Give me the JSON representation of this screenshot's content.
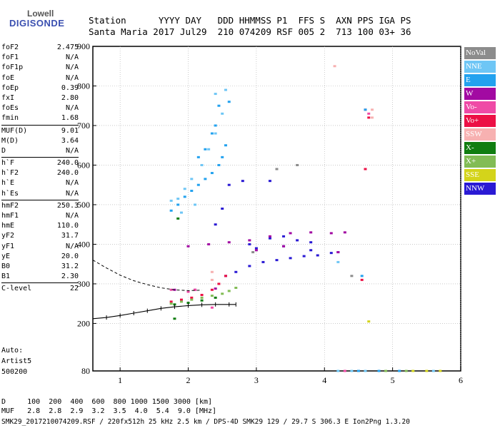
{
  "logo": {
    "line1": "Lowell",
    "line2": "DIGISONDE"
  },
  "header": {
    "row1": "Station      YYYY DAY   DDD HHMMSS P1  FFS S  AXN PPS IGA PS",
    "row2": "Santa Maria 2017 Jul29  210 074209 RSF 005 2  713 100 03+ 36"
  },
  "params": [
    {
      "group": [
        {
          "name": "foF2",
          "value": "2.475"
        },
        {
          "name": "foF1",
          "value": "N/A"
        },
        {
          "name": "foF1p",
          "value": "N/A"
        },
        {
          "name": "foE",
          "value": "N/A"
        },
        {
          "name": "foEp",
          "value": "0.39"
        },
        {
          "name": "fxI",
          "value": "2.80"
        },
        {
          "name": "foEs",
          "value": "N/A"
        },
        {
          "name": "fmin",
          "value": "1.68"
        }
      ]
    },
    {
      "group": [
        {
          "name": "MUF(D)",
          "value": "9.01"
        },
        {
          "name": "M(D)",
          "value": "3.64"
        },
        {
          "name": "D",
          "value": "N/A"
        }
      ]
    },
    {
      "group": [
        {
          "name": "h`F",
          "value": "240.0"
        },
        {
          "name": "h`F2",
          "value": "240.0"
        },
        {
          "name": "h`E",
          "value": "N/A"
        },
        {
          "name": "h`Es",
          "value": "N/A"
        }
      ]
    },
    {
      "group": [
        {
          "name": "hmF2",
          "value": "250.3"
        },
        {
          "name": "hmF1",
          "value": "N/A"
        },
        {
          "name": "hmE",
          "value": "110.0"
        },
        {
          "name": "yF2",
          "value": "31.7"
        },
        {
          "name": "yF1",
          "value": "N/A"
        },
        {
          "name": "yE",
          "value": "20.0"
        },
        {
          "name": "B0",
          "value": "31.2"
        },
        {
          "name": "B1",
          "value": "2.30"
        }
      ]
    },
    {
      "group": [
        {
          "name": "C-level",
          "value": "22"
        }
      ]
    }
  ],
  "auto": {
    "label": "Auto:",
    "scaler": "Artist5",
    "version": "500200"
  },
  "legend": [
    {
      "label": "NoVal",
      "color": "#8c8c8c"
    },
    {
      "label": "NNE",
      "color": "#6ec6f5"
    },
    {
      "label": "E",
      "color": "#23a2ef"
    },
    {
      "label": "W",
      "color": "#a20aa2"
    },
    {
      "label": "Vo-",
      "color": "#ef4aa6"
    },
    {
      "label": "Vo+",
      "color": "#ec1045"
    },
    {
      "label": "SSW",
      "color": "#f7b1b1"
    },
    {
      "label": "X-",
      "color": "#107d10"
    },
    {
      "label": "X+",
      "color": "#82bc55"
    },
    {
      "label": "SSE",
      "color": "#d4d41a"
    },
    {
      "label": "NNW",
      "color": "#2a1ad4"
    }
  ],
  "footer": {
    "row1": "D     100  200  400  600  800 1000 1500 3000 [km]",
    "row2": "MUF   2.8  2.8  2.9  3.2  3.5  4.0  5.4  9.0 [MHz]",
    "row3": "SMK29_2017210074209.RSF / 220fx512h 25 kHz 2.5 km / DPS-4D SMK29 129 / 29.7 S 306.3 E Ion2Png 1.3.20"
  },
  "chart_data": {
    "type": "scatter",
    "x_range": [
      0.6,
      6.0
    ],
    "y_range": [
      80,
      900
    ],
    "x_ticks": [
      "1",
      "2",
      "3",
      "4",
      "5",
      "6"
    ],
    "y_ticks": [
      "80",
      "200",
      "300",
      "400",
      "500",
      "600",
      "700",
      "800",
      "900"
    ],
    "grid": true,
    "legend_position": "right",
    "series": [
      {
        "name": "NNW",
        "color": "#2a1ad4",
        "points": [
          [
            2.55,
            320
          ],
          [
            2.7,
            330
          ],
          [
            2.9,
            345
          ],
          [
            3.1,
            355
          ],
          [
            3.3,
            360
          ],
          [
            3.5,
            365
          ],
          [
            3.7,
            370
          ],
          [
            3.9,
            372
          ],
          [
            4.1,
            378
          ],
          [
            4.2,
            380
          ],
          [
            2.9,
            400
          ],
          [
            3.2,
            415
          ],
          [
            3.4,
            420
          ],
          [
            3.6,
            410
          ],
          [
            3.8,
            405
          ],
          [
            3.0,
            390
          ],
          [
            3.4,
            395
          ],
          [
            3.8,
            385
          ],
          [
            2.6,
            550
          ],
          [
            2.8,
            560
          ],
          [
            3.2,
            560
          ],
          [
            2.5,
            490
          ],
          [
            2.4,
            450
          ]
        ]
      },
      {
        "name": "W",
        "color": "#a20aa2",
        "points": [
          [
            2.0,
            395
          ],
          [
            2.3,
            400
          ],
          [
            2.6,
            405
          ],
          [
            2.9,
            410
          ],
          [
            3.2,
            420
          ],
          [
            3.5,
            428
          ],
          [
            3.8,
            430
          ],
          [
            4.1,
            428
          ],
          [
            3.4,
            395
          ],
          [
            3.0,
            385
          ],
          [
            4.3,
            430
          ],
          [
            1.8,
            285
          ],
          [
            2.1,
            285
          ],
          [
            2.4,
            288
          ],
          [
            4.2,
            380
          ]
        ]
      },
      {
        "name": "Vo+",
        "color": "#ec1045",
        "points": [
          [
            1.75,
            255
          ],
          [
            1.9,
            260
          ],
          [
            2.05,
            265
          ],
          [
            2.2,
            272
          ],
          [
            2.35,
            285
          ],
          [
            2.45,
            300
          ],
          [
            2.55,
            320
          ],
          [
            4.6,
            740
          ],
          [
            4.65,
            720
          ],
          [
            4.55,
            310
          ],
          [
            4.6,
            590
          ]
        ]
      },
      {
        "name": "X+",
        "color": "#82bc55",
        "points": [
          [
            1.75,
            250
          ],
          [
            1.9,
            255
          ],
          [
            2.05,
            260
          ],
          [
            2.2,
            265
          ],
          [
            2.35,
            270
          ],
          [
            2.5,
            275
          ],
          [
            2.6,
            282
          ],
          [
            2.7,
            290
          ],
          [
            4.9,
            80
          ],
          [
            5.2,
            80
          ]
        ]
      },
      {
        "name": "X-",
        "color": "#107d10",
        "points": [
          [
            1.8,
            248
          ],
          [
            2.0,
            252
          ],
          [
            2.2,
            258
          ],
          [
            2.4,
            265
          ],
          [
            1.85,
            465
          ],
          [
            1.8,
            212
          ]
        ]
      },
      {
        "name": "E",
        "color": "#23a2ef",
        "points": [
          [
            1.75,
            485
          ],
          [
            1.85,
            500
          ],
          [
            1.95,
            520
          ],
          [
            2.05,
            535
          ],
          [
            2.15,
            550
          ],
          [
            2.25,
            565
          ],
          [
            2.35,
            580
          ],
          [
            2.45,
            600
          ],
          [
            2.5,
            620
          ],
          [
            2.55,
            650
          ],
          [
            2.4,
            700
          ],
          [
            2.45,
            750
          ],
          [
            2.35,
            680
          ],
          [
            2.25,
            640
          ],
          [
            2.15,
            620
          ],
          [
            2.6,
            760
          ],
          [
            4.5,
            80
          ],
          [
            4.8,
            80
          ],
          [
            5.1,
            80
          ],
          [
            4.6,
            740
          ],
          [
            4.55,
            320
          ]
        ]
      },
      {
        "name": "NNE",
        "color": "#6ec6f5",
        "points": [
          [
            1.75,
            510
          ],
          [
            1.85,
            515
          ],
          [
            1.95,
            540
          ],
          [
            2.05,
            565
          ],
          [
            2.2,
            600
          ],
          [
            2.3,
            640
          ],
          [
            2.4,
            680
          ],
          [
            2.5,
            730
          ],
          [
            2.55,
            790
          ],
          [
            2.4,
            780
          ],
          [
            1.9,
            480
          ],
          [
            2.1,
            500
          ],
          [
            4.2,
            80
          ],
          [
            4.4,
            80
          ],
          [
            4.6,
            80
          ],
          [
            5.3,
            80
          ],
          [
            5.6,
            80
          ],
          [
            4.2,
            355
          ]
        ]
      },
      {
        "name": "Vo-",
        "color": "#ef4aa6",
        "points": [
          [
            2.0,
            280
          ],
          [
            2.1,
            285
          ],
          [
            2.35,
            240
          ],
          [
            1.75,
            285
          ],
          [
            4.3,
            80
          ],
          [
            4.65,
            730
          ]
        ]
      },
      {
        "name": "SSW",
        "color": "#f7b1b1",
        "points": [
          [
            4.7,
            740
          ],
          [
            4.7,
            720
          ],
          [
            2.35,
            330
          ],
          [
            2.35,
            310
          ],
          [
            4.15,
            850
          ]
        ]
      },
      {
        "name": "SSE",
        "color": "#d4d41a",
        "points": [
          [
            5.3,
            80
          ],
          [
            5.5,
            80
          ],
          [
            5.7,
            80
          ],
          [
            4.65,
            205
          ]
        ]
      },
      {
        "name": "NoVal",
        "color": "#8c8c8c",
        "points": [
          [
            2.95,
            380
          ],
          [
            3.3,
            590
          ],
          [
            3.6,
            600
          ],
          [
            4.4,
            320
          ]
        ]
      }
    ],
    "profile_curve": [
      [
        0.6,
        212
      ],
      [
        0.8,
        215
      ],
      [
        1.0,
        220
      ],
      [
        1.2,
        226
      ],
      [
        1.4,
        232
      ],
      [
        1.6,
        238
      ],
      [
        1.8,
        242
      ],
      [
        2.0,
        245
      ],
      [
        2.2,
        247
      ],
      [
        2.4,
        248
      ],
      [
        2.6,
        248
      ],
      [
        2.7,
        248
      ]
    ],
    "profile_dashed": [
      [
        0.6,
        360
      ],
      [
        0.8,
        340
      ],
      [
        1.0,
        322
      ],
      [
        1.2,
        308
      ],
      [
        1.4,
        298
      ],
      [
        1.6,
        290
      ],
      [
        1.8,
        285
      ],
      [
        2.0,
        283
      ],
      [
        2.2,
        284
      ]
    ]
  }
}
